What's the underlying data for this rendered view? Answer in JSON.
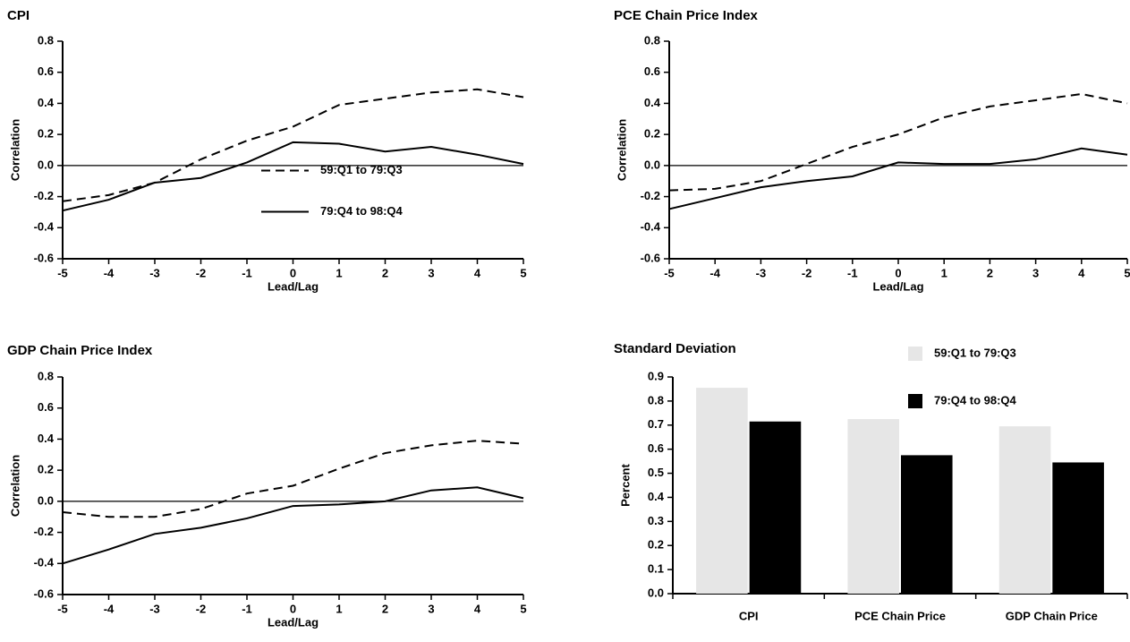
{
  "chart_data": [
    {
      "type": "line",
      "title": "CPI",
      "xlabel": "Lead/Lag",
      "ylabel": "Correlation",
      "x": [
        -5,
        -4,
        -3,
        -2,
        -1,
        0,
        1,
        2,
        3,
        4,
        5
      ],
      "series": [
        {
          "name": "59:Q1 to 79:Q3",
          "color": "#000000",
          "style": "dashed",
          "values": [
            -0.23,
            -0.19,
            -0.11,
            0.04,
            0.16,
            0.25,
            0.39,
            0.43,
            0.47,
            0.49,
            0.44
          ]
        },
        {
          "name": "79:Q4 to 98:Q4",
          "color": "#000000",
          "style": "solid",
          "values": [
            -0.29,
            -0.22,
            -0.11,
            -0.08,
            0.02,
            0.15,
            0.14,
            0.09,
            0.12,
            0.07,
            0.01
          ]
        }
      ],
      "xlim": [
        -5,
        5
      ],
      "xticks": [
        -5,
        -4,
        -3,
        -2,
        -1,
        0,
        1,
        2,
        3,
        4,
        5
      ],
      "ylim": [
        -0.6,
        0.8
      ],
      "yticks": [
        -0.6,
        -0.4,
        -0.2,
        {
          "value": 0,
          "label": "0.0"
        },
        0.2,
        0.4,
        0.6,
        0.8
      ],
      "legend": "center"
    },
    {
      "type": "line",
      "title": "PCE Chain Price Index",
      "xlabel": "Lead/Lag",
      "ylabel": "Correlation",
      "x": [
        -5,
        -4,
        -3,
        -2,
        -1,
        0,
        1,
        2,
        3,
        4,
        5
      ],
      "series": [
        {
          "color": "#000000",
          "style": "dashed",
          "values": [
            -0.16,
            -0.15,
            -0.1,
            0.01,
            0.12,
            0.2,
            0.31,
            0.38,
            0.42,
            0.46,
            0.4
          ]
        },
        {
          "color": "#000000",
          "style": "solid",
          "values": [
            -0.28,
            -0.21,
            -0.14,
            -0.1,
            -0.07,
            0.02,
            0.01,
            0.01,
            0.04,
            0.11,
            0.07
          ]
        }
      ],
      "xlim": [
        -5,
        5
      ],
      "xticks": [
        -5,
        -4,
        -3,
        -2,
        -1,
        0,
        1,
        2,
        3,
        4,
        5
      ],
      "ylim": [
        -0.6,
        0.8
      ],
      "yticks": [
        -0.6,
        -0.4,
        -0.2,
        {
          "value": 0,
          "label": "0.0"
        },
        0.2,
        0.4,
        0.6,
        0.8
      ]
    },
    {
      "type": "line",
      "title": "GDP Chain Price Index",
      "xlabel": "Lead/Lag",
      "ylabel": "Correlation",
      "x": [
        -5,
        -4,
        -3,
        -2,
        -1,
        0,
        1,
        2,
        3,
        4,
        5
      ],
      "series": [
        {
          "color": "#000000",
          "style": "dashed",
          "values": [
            -0.07,
            -0.1,
            -0.1,
            -0.05,
            0.05,
            0.1,
            0.21,
            0.31,
            0.36,
            0.39,
            0.37
          ]
        },
        {
          "color": "#000000",
          "style": "solid",
          "values": [
            -0.4,
            -0.31,
            -0.21,
            -0.17,
            -0.11,
            -0.03,
            -0.02,
            0.0,
            0.07,
            0.09,
            0.02
          ]
        }
      ],
      "xlim": [
        -5,
        5
      ],
      "xticks": [
        -5,
        -4,
        -3,
        -2,
        -1,
        0,
        1,
        2,
        3,
        4,
        5
      ],
      "ylim": [
        -0.6,
        0.8
      ],
      "yticks": [
        -0.6,
        -0.4,
        -0.2,
        {
          "value": 0,
          "label": "0.0"
        },
        0.2,
        0.4,
        0.6,
        0.8
      ]
    },
    {
      "type": "bar",
      "title": "Standard Deviation",
      "ylabel": "Percent",
      "categories": [
        "CPI",
        "PCE Chain Price",
        "GDP Chain Price"
      ],
      "series": [
        {
          "name": "59:Q1 to 79:Q3",
          "color": "#e6e6e6",
          "values": [
            0.855,
            0.725,
            0.695
          ]
        },
        {
          "name": "79:Q4 to 98:Q4",
          "color": "#000000",
          "values": [
            0.715,
            0.575,
            0.545
          ]
        }
      ],
      "ylim": [
        0,
        0.9
      ],
      "yticks": [
        {
          "value": 0,
          "label": "0.0"
        },
        0.1,
        0.2,
        0.3,
        0.4,
        0.5,
        0.6,
        0.7,
        0.8,
        0.9
      ],
      "legend": "upper-right"
    }
  ]
}
